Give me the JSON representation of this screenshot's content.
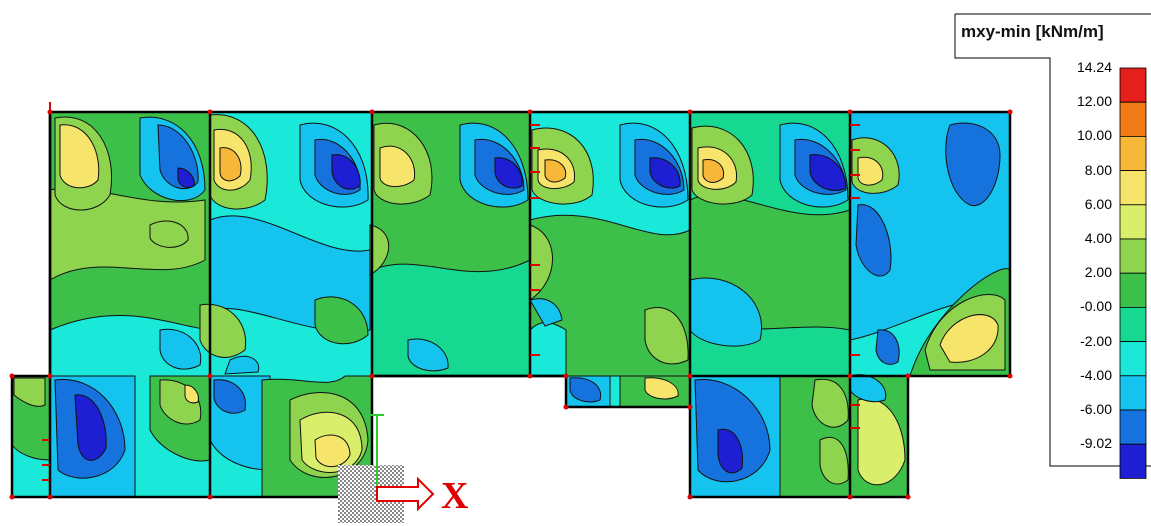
{
  "legend": {
    "title": "mxy-min [kNm/m]",
    "ticks": [
      "14.24",
      "12.00",
      "10.00",
      "8.00",
      "6.00",
      "4.00",
      "2.00",
      "-0.00",
      "-2.00",
      "-4.00",
      "-6.00",
      "-9.02"
    ],
    "band_colors": [
      "#e41f1c",
      "#f07a17",
      "#f7b83a",
      "#f7e56b",
      "#d9ef6b",
      "#8ed44f",
      "#3cc04a",
      "#17d890",
      "#1ae8d8",
      "#14c4ee",
      "#1673de",
      "#1e1ed2"
    ]
  },
  "axis": {
    "x_label": "X"
  }
}
